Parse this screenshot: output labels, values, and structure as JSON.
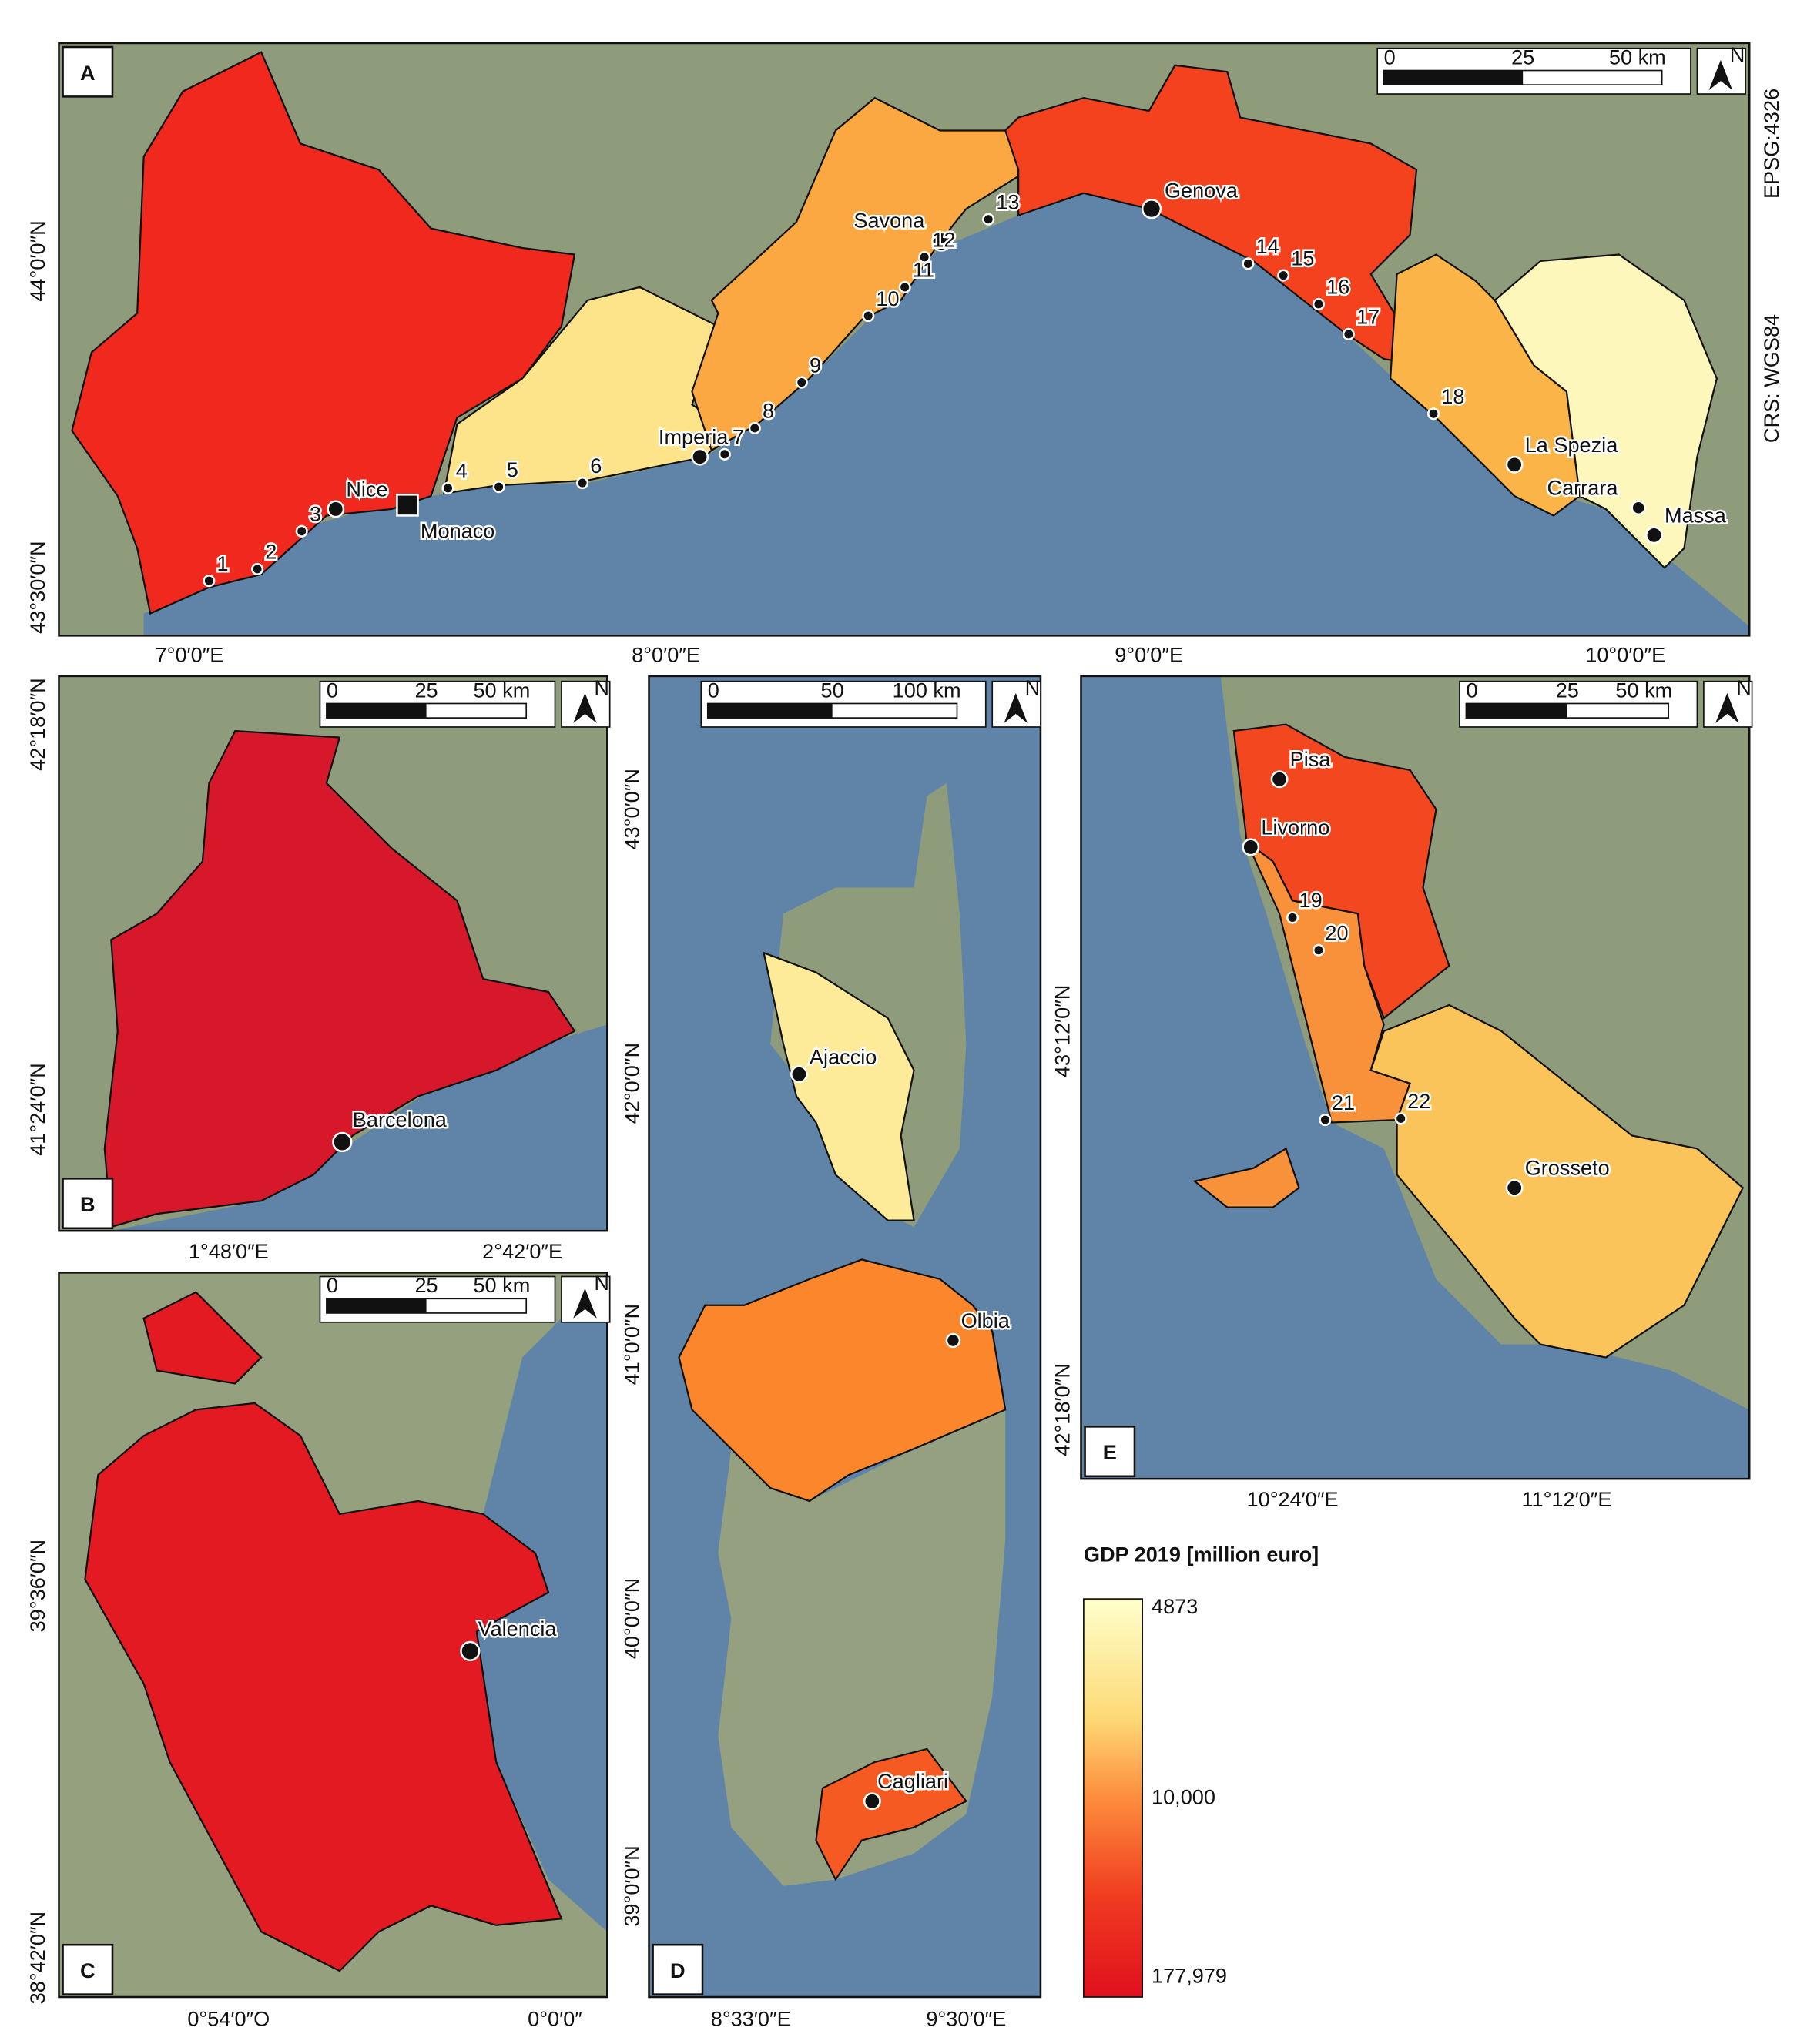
{
  "panels": [
    {
      "letter": "A",
      "scale": [
        "0",
        "25",
        "50 km"
      ],
      "north": "N",
      "lat": [
        "44°0′0″N",
        "43°30′0″N"
      ],
      "lon": [
        "7°0′0″E",
        "8°0′0″E",
        "9°0′0″E",
        "10°0′0″E"
      ],
      "places": [
        "Nice",
        "Monaco",
        "Imperia",
        "Savona",
        "Genova",
        "La Spezia",
        "Carrara",
        "Massa"
      ],
      "sites": [
        "1",
        "2",
        "3",
        "4",
        "5",
        "6",
        "7",
        "8",
        "9",
        "10",
        "11",
        "12",
        "13",
        "14",
        "15",
        "16",
        "17",
        "18"
      ]
    },
    {
      "letter": "B",
      "scale": [
        "0",
        "25",
        "50 km"
      ],
      "north": "N",
      "lat": [
        "42°18′0″N",
        "41°24′0″N"
      ],
      "lon": [
        "1°48′0″E",
        "2°42′0″E"
      ],
      "places": [
        "Barcelona"
      ]
    },
    {
      "letter": "C",
      "scale": [
        "0",
        "25",
        "50 km"
      ],
      "north": "N",
      "lat": [
        "39°36′0″N",
        "38°42′0″N"
      ],
      "lon": [
        "0°54′0″O",
        "0°0′0″"
      ],
      "places": [
        "Valencia"
      ]
    },
    {
      "letter": "D",
      "scale": [
        "0",
        "50",
        "100 km"
      ],
      "north": "N",
      "lat": [
        "43°0′0″N",
        "42°0′0″N",
        "41°0′0″N",
        "40°0′0″N",
        "39°0′0″N"
      ],
      "lon": [
        "8°33′0″E",
        "9°30′0″E"
      ],
      "places": [
        "Ajaccio",
        "Olbia",
        "Cagliari"
      ]
    },
    {
      "letter": "E",
      "scale": [
        "0",
        "25",
        "50 km"
      ],
      "north": "N",
      "lat": [
        "43°12′0″N",
        "42°18′0″N"
      ],
      "lon": [
        "10°24′0″E",
        "11°12′0″E"
      ],
      "places": [
        "Pisa",
        "Livorno",
        "Grosseto"
      ],
      "sites": [
        "19",
        "20",
        "21",
        "22"
      ]
    }
  ],
  "crs": [
    "EPSG:4326",
    "CRS: WGS84"
  ],
  "legend": {
    "title": "GDP 2019 [million euro]",
    "labels": [
      "4873",
      "10,000",
      "177,979"
    ]
  }
}
